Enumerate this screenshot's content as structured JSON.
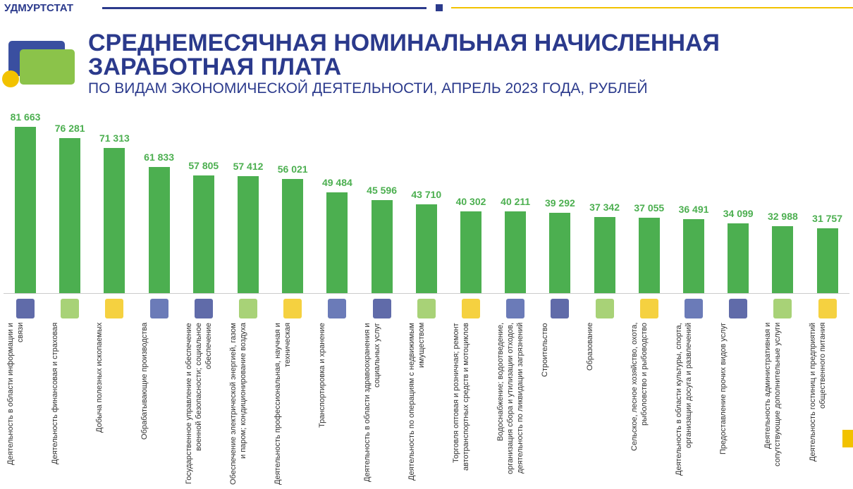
{
  "header": {
    "brand": "УДМУРТСТАТ"
  },
  "chart_data": {
    "type": "bar",
    "title": "СРЕДНЕМЕСЯЧНАЯ НОМИНАЛЬНАЯ НАЧИСЛЕННАЯ ЗАРАБОТНАЯ ПЛАТА",
    "subtitle": "ПО ВИДАМ ЭКОНОМИЧЕСКОЙ ДЕЯТЕЛЬНОСТИ, АПРЕЛЬ 2023 ГОДА, РУБЛЕЙ",
    "color": "#4caf50",
    "categories": [
      "Деятельность в области информации и связи",
      "Деятельность финансовая и страховая",
      "Добыча полезных ископаемых",
      "Обрабатывающие производства",
      "Государственное управление и обеспечение военной безопасности; социальное обеспечение",
      "Обеспечение электрической энергией, газом и паром; кондиционирование воздуха",
      "Деятельность профессиональная, научная и техническая",
      "Транспортировка и хранение",
      "Деятельность в области здравоохранения и социальных услуг",
      "Деятельность по операциям с недвижимым имуществом",
      "Торговля оптовая и розничная; ремонт автотранспортных средств и мотоциклов",
      "Водоснабжение; водоотведение, организация сбора и утилизации отходов, деятельность по ликвидации загрязнений",
      "Строительство",
      "Образование",
      "Сельское, лесное хозяйство, охота, рыболовство и рыбоводство",
      "Деятельность в области культуры, спорта, организации досуга и развлечений",
      "Предоставление прочих видов услуг",
      "Деятельность административная и сопутствующие дополнительные услуги",
      "Деятельность гостиниц и предприятий общественного питания"
    ],
    "values": [
      81663,
      76281,
      71313,
      61833,
      57805,
      57412,
      56021,
      49484,
      45596,
      43710,
      40302,
      40211,
      39292,
      37342,
      37055,
      36491,
      34099,
      32988,
      31757
    ],
    "value_labels": [
      "81 663",
      "76 281",
      "71 313",
      "61 833",
      "57 805",
      "57 412",
      "56 021",
      "49 484",
      "45 596",
      "43 710",
      "40 302",
      "40 211",
      "39 292",
      "37 342",
      "37 055",
      "36 491",
      "34 099",
      "32 988",
      "31 757"
    ]
  }
}
